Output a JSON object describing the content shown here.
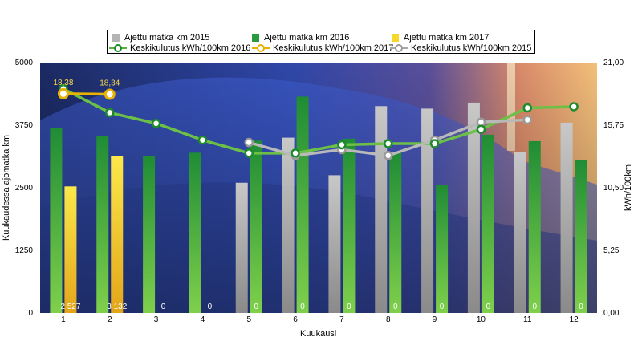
{
  "chart_data": {
    "type": "bar+line",
    "title": "",
    "xlabel": "Kuukausi",
    "ylabel_left": "Kuukaudessa ajomatka km",
    "ylabel_right": "kWh/100km",
    "categories": [
      "1",
      "2",
      "3",
      "4",
      "5",
      "6",
      "7",
      "8",
      "9",
      "10",
      "11",
      "12"
    ],
    "ylim_left": [
      0,
      5000
    ],
    "yticks_left": [
      "0",
      "1250",
      "2500",
      "3750",
      "5000"
    ],
    "ylim_right": [
      0,
      21
    ],
    "yticks_right": [
      "0,00",
      "5,25",
      "10,50",
      "15,75",
      "21,00"
    ],
    "bar_series": [
      {
        "name": "Ajettu matka km 2015",
        "color": "#b4b4b4",
        "values": [
          null,
          null,
          null,
          null,
          2600,
          3500,
          2750,
          4130,
          4080,
          4200,
          3220,
          3800
        ]
      },
      {
        "name": "Ajettu matka km 2016",
        "color": "#2a9a3e",
        "values": [
          3700,
          3530,
          3130,
          3200,
          3440,
          4320,
          3480,
          3200,
          2560,
          3560,
          3430,
          3060
        ]
      },
      {
        "name": "Ajettu matka km 2017",
        "color": "#f4d92a",
        "values": [
          2527,
          3132,
          0,
          0,
          0,
          0,
          0,
          0,
          0,
          0,
          0,
          0
        ]
      }
    ],
    "bar_labels_2017": [
      "2 527",
      "3 132",
      "0",
      "0",
      "0",
      "0",
      "0",
      "0",
      "0",
      "0",
      "0",
      "0"
    ],
    "line_series": [
      {
        "name": "Keskikulutus kWh/100km 2016",
        "color": "#58b33d",
        "values": [
          18.8,
          16.8,
          15.9,
          14.5,
          13.4,
          13.4,
          14.1,
          14.2,
          14.2,
          15.4,
          17.2,
          17.3
        ]
      },
      {
        "name": "Keskikulutus kWh/100km 2017",
        "color": "#e8b200",
        "values": [
          18.38,
          18.34,
          null,
          null,
          null,
          null,
          null,
          null,
          null,
          null,
          null,
          null
        ]
      },
      {
        "name": "Keskikulutus kWh/100km 2015",
        "color": "#a8a8a8",
        "values": [
          null,
          null,
          null,
          null,
          14.3,
          13.2,
          13.7,
          13.2,
          14.5,
          16.0,
          16.2,
          null
        ]
      }
    ],
    "line_labels_2017": [
      "18,38",
      "18,34"
    ],
    "background": "photo of snow-covered car at dusk"
  },
  "legend": {
    "bar2015": "Ajettu matka km 2015",
    "bar2016": "Ajettu matka km 2016",
    "bar2017": "Ajettu matka km 2017",
    "line2016": "Keskikulutus kWh/100km 2016",
    "line2017": "Keskikulutus kWh/100km 2017",
    "line2015": "Keskikulutus kWh/100km 2015"
  },
  "axis": {
    "x_title": "Kuukausi",
    "y_left_title": "Kuukaudessa ajomatka km",
    "y_right_title": "kWh/100km"
  }
}
